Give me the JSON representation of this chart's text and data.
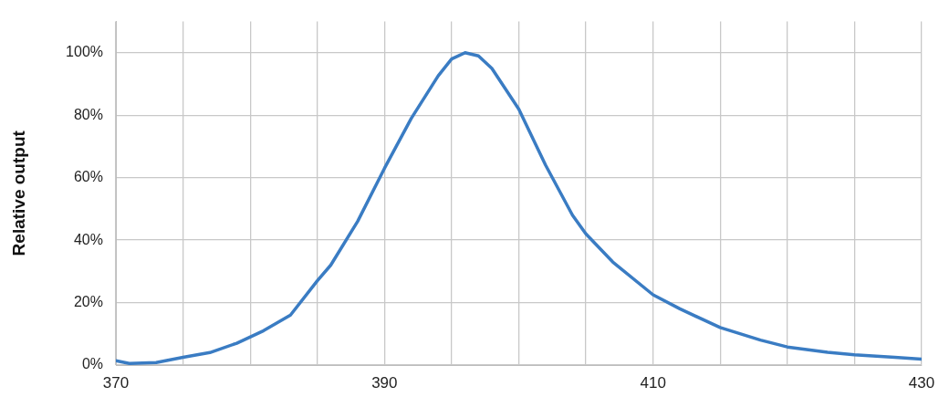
{
  "chart_data": {
    "type": "line",
    "ylabel": "Relative output",
    "x": [
      370,
      371,
      373,
      375,
      377,
      379,
      381,
      383,
      385,
      386,
      388,
      390,
      392,
      394,
      395,
      396,
      397,
      398,
      400,
      402,
      404,
      405,
      407,
      410,
      412,
      415,
      418,
      420,
      423,
      425,
      428,
      430
    ],
    "series": [
      {
        "color": "#3a7cc3",
        "values": [
          1.4,
          0.5,
          0.8,
          2.5,
          4,
          7,
          11,
          16,
          27,
          32,
          46,
          63,
          79,
          92.6,
          98,
          100,
          99,
          95,
          82,
          64,
          48,
          42,
          33,
          22.5,
          18,
          12,
          8,
          5.8,
          4.1,
          3.3,
          2.5,
          1.9
        ]
      }
    ],
    "xlim": [
      370,
      430
    ],
    "xticks": [
      370,
      {
        "value": 375,
        "label": null
      },
      {
        "value": 380,
        "label": null
      },
      {
        "value": 385,
        "label": null
      },
      390,
      {
        "value": 395,
        "label": null
      },
      {
        "value": 400,
        "label": null
      },
      {
        "value": 405,
        "label": null
      },
      410,
      {
        "value": 415,
        "label": null
      },
      {
        "value": 420,
        "label": null
      },
      {
        "value": 425,
        "label": null
      },
      430
    ],
    "ylim": [
      0,
      110
    ],
    "yticks": [
      {
        "value": 0,
        "label": "0%"
      },
      {
        "value": 20,
        "label": "20%"
      },
      {
        "value": 40,
        "label": "40%"
      },
      {
        "value": 60,
        "label": "60%"
      },
      {
        "value": 80,
        "label": "80%"
      },
      {
        "value": 100,
        "label": "100%"
      }
    ],
    "grid": true,
    "legend": false,
    "marker": "none",
    "line_style": "solid"
  }
}
